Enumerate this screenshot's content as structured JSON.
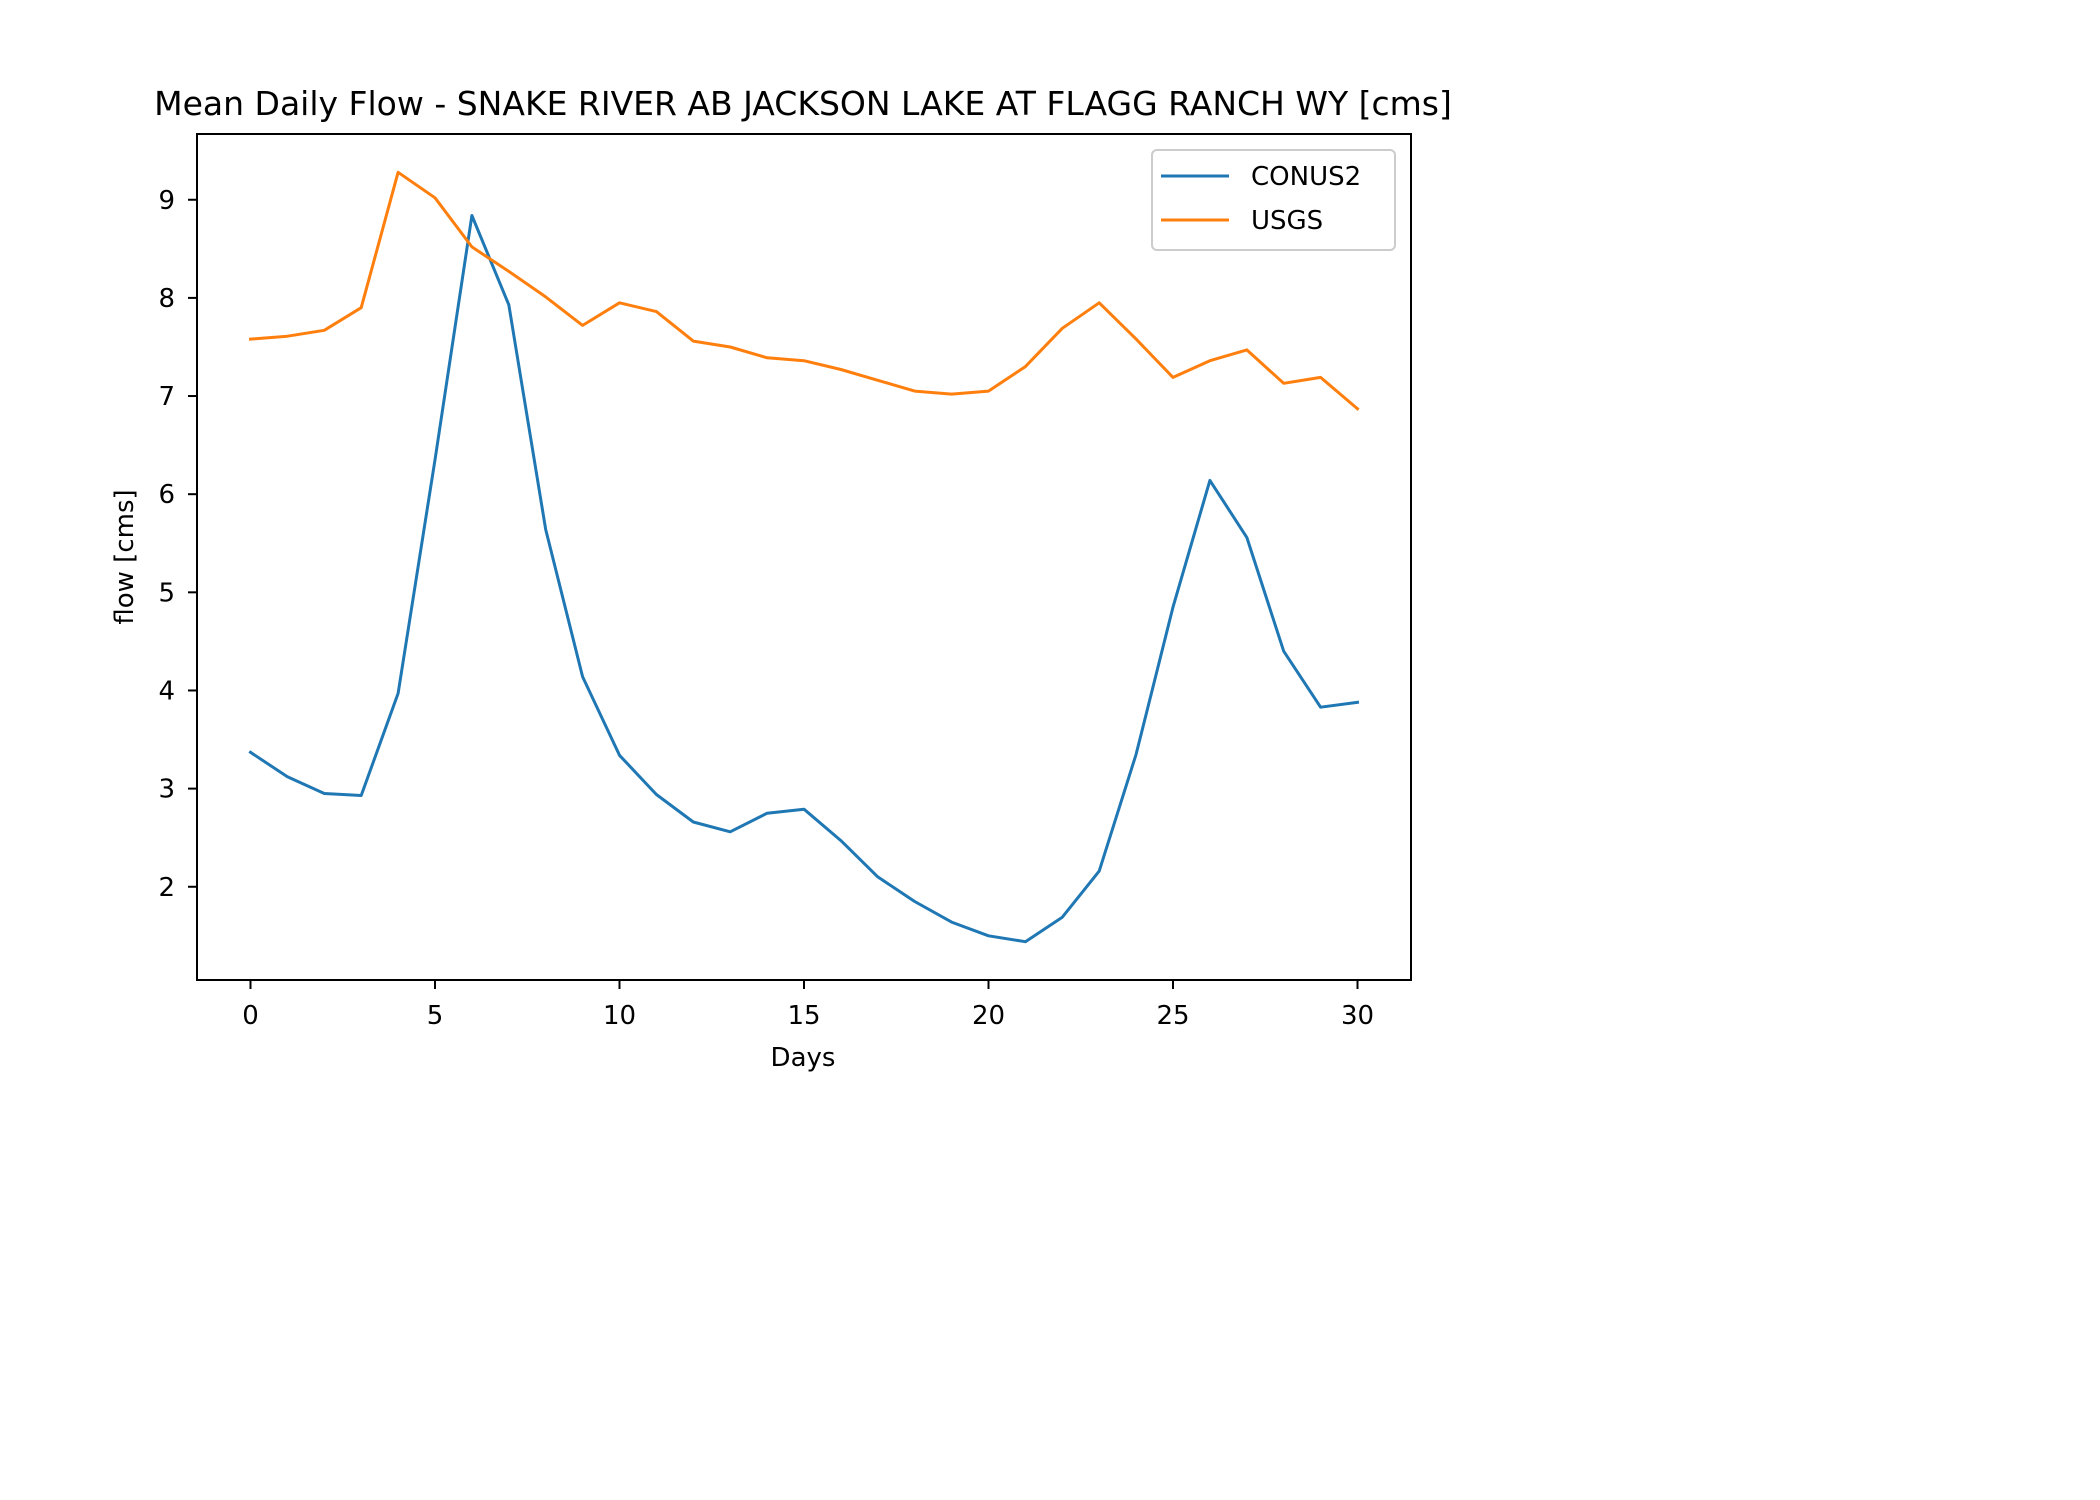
{
  "chart_data": {
    "type": "line",
    "title": "Mean Daily Flow - SNAKE RIVER AB JACKSON LAKE AT FLAGG RANCH WY [cms]",
    "xlabel": "Days",
    "ylabel": "flow [cms]",
    "xlim": [
      -1.45,
      31.45
    ],
    "ylim": [
      1.05,
      9.67
    ],
    "xticks": [
      0,
      5,
      10,
      15,
      20,
      25,
      30
    ],
    "yticks": [
      2,
      3,
      4,
      5,
      6,
      7,
      8,
      9
    ],
    "grid": false,
    "legend_position": "top-right",
    "x": [
      0,
      1,
      2,
      3,
      4,
      5,
      6,
      7,
      8,
      9,
      10,
      11,
      12,
      13,
      14,
      15,
      16,
      17,
      18,
      19,
      20,
      21,
      22,
      23,
      24,
      25,
      26,
      27,
      28,
      29,
      30
    ],
    "series": [
      {
        "name": "CONUS2",
        "color": "#1f77b4",
        "values": [
          3.37,
          3.12,
          2.95,
          2.93,
          3.97,
          6.35,
          8.84,
          7.93,
          5.64,
          4.14,
          3.34,
          2.94,
          2.66,
          2.56,
          2.75,
          2.79,
          2.47,
          2.1,
          1.85,
          1.64,
          1.5,
          1.44,
          1.69,
          2.16,
          3.35,
          4.85,
          6.14,
          5.56,
          4.4,
          3.83,
          3.88
        ]
      },
      {
        "name": "USGS",
        "color": "#ff7f0e",
        "values": [
          7.58,
          7.61,
          7.67,
          7.9,
          9.28,
          9.02,
          8.52,
          8.27,
          8.01,
          7.72,
          7.95,
          7.86,
          7.56,
          7.5,
          7.39,
          7.36,
          7.27,
          7.16,
          7.05,
          7.02,
          7.05,
          7.3,
          7.69,
          7.95,
          7.58,
          7.19,
          7.36,
          7.47,
          7.13,
          7.19,
          6.87
        ]
      }
    ]
  }
}
